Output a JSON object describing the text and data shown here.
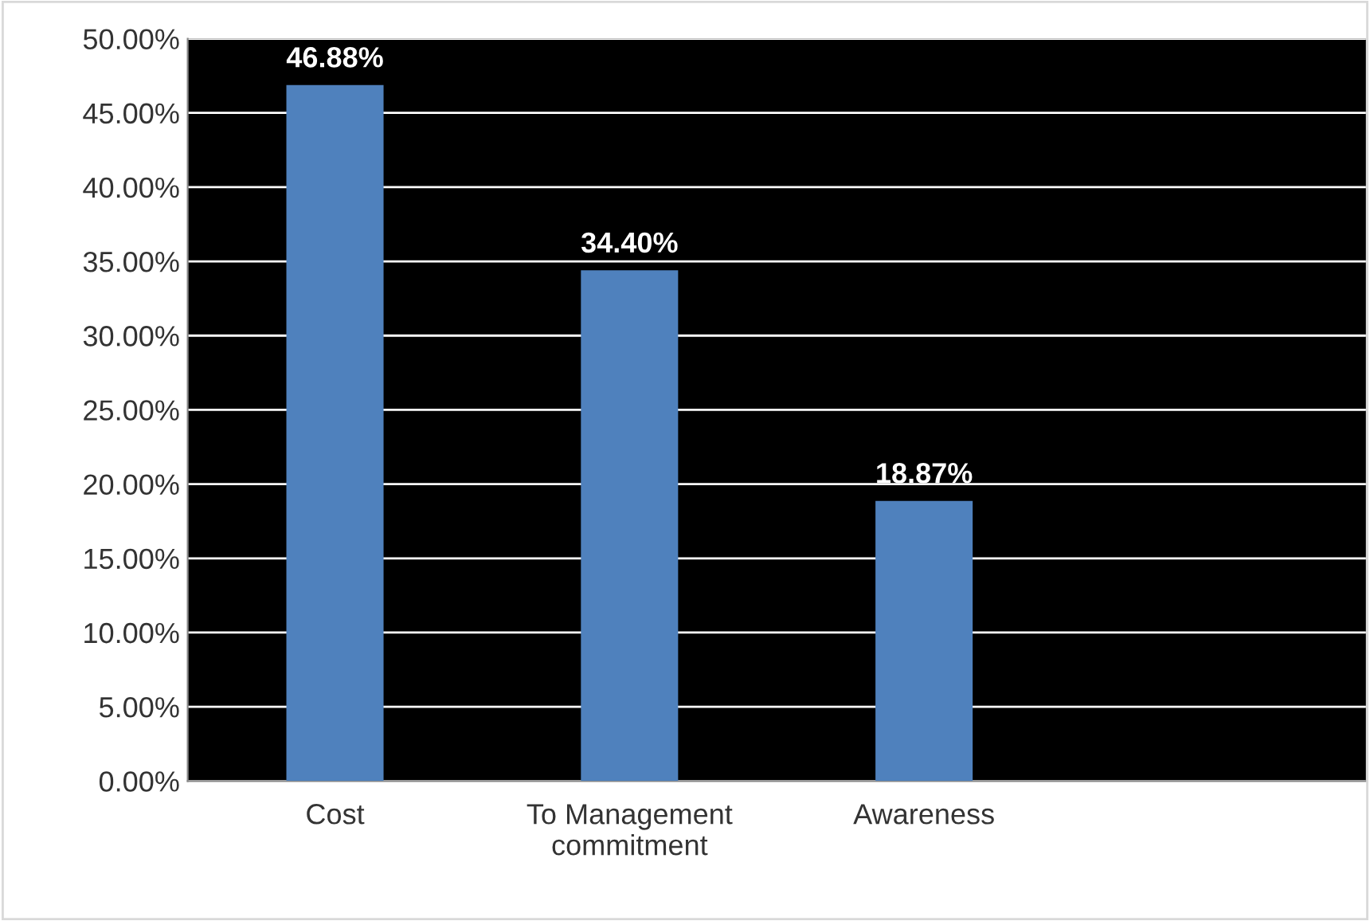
{
  "chart_data": {
    "type": "bar",
    "categories": [
      "Cost",
      "To Management\ncommitment",
      "Awareness",
      null
    ],
    "values": [
      46.88,
      34.4,
      18.87,
      null
    ],
    "color": "#4f81bd",
    "value_labels": [
      "46.88%",
      "34.40%",
      "18.87%",
      null
    ],
    "ylim": [
      0,
      50
    ],
    "yticks": [
      {
        "value": 0,
        "label": "0.00%"
      },
      {
        "value": 5,
        "label": "5.00%"
      },
      {
        "value": 10,
        "label": "10.00%"
      },
      {
        "value": 15,
        "label": "15.00%"
      },
      {
        "value": 20,
        "label": "20.00%"
      },
      {
        "value": 25,
        "label": "25.00%"
      },
      {
        "value": 30,
        "label": "30.00%"
      },
      {
        "value": 35,
        "label": "35.00%"
      },
      {
        "value": 40,
        "label": "40.00%"
      },
      {
        "value": 45,
        "label": "45.00%"
      },
      {
        "value": 50,
        "label": "50.00%"
      }
    ],
    "grid": "y",
    "legend": false
  }
}
